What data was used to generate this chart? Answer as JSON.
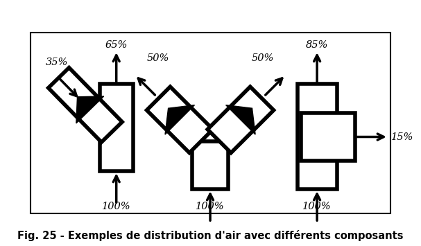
{
  "title": "Fig. 25 - Exemples de distribution d'air avec différents composants",
  "bg_color": "#ffffff",
  "lw": 4.0,
  "font_size": 10.5
}
